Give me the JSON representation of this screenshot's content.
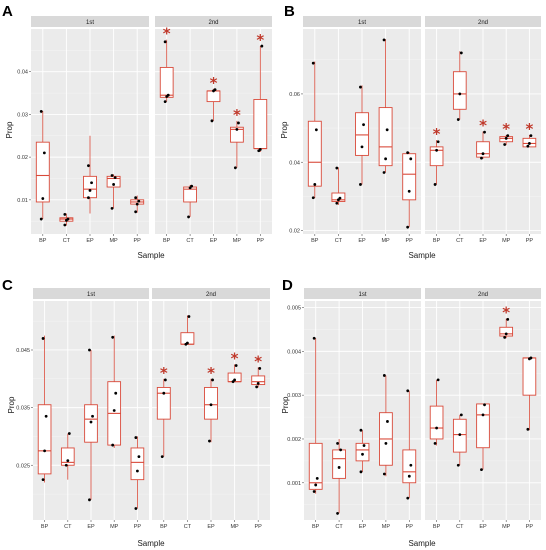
{
  "chart_data": [
    {
      "type": "box",
      "panel_label": "A",
      "xlabel": "Sample",
      "ylabel": "Prop",
      "ylim": [
        0.002,
        0.05
      ],
      "yticks": [
        0.01,
        0.02,
        0.03,
        0.04
      ],
      "ytick_labels": [
        "0.01",
        "0.02",
        "0.03",
        "0.04"
      ],
      "facets": [
        {
          "label": "1st",
          "categories": [
            "BP",
            "CT",
            "EP",
            "MP",
            "PP"
          ],
          "boxes": [
            {
              "min": 0.0055,
              "q1": 0.0095,
              "median": 0.0157,
              "q3": 0.0235,
              "max": 0.0308,
              "points": [
                0.0055,
                0.0103,
                0.021,
                0.0307
              ],
              "star": false
            },
            {
              "min": 0.004,
              "q1": 0.005,
              "median": 0.0055,
              "q3": 0.0058,
              "max": 0.0068,
              "points": [
                0.0041,
                0.0052,
                0.0055,
                0.0066
              ],
              "star": false
            },
            {
              "min": 0.0068,
              "q1": 0.0105,
              "median": 0.0125,
              "q3": 0.0155,
              "max": 0.025,
              "points": [
                0.0105,
                0.0122,
                0.014,
                0.018
              ],
              "star": false
            },
            {
              "min": 0.008,
              "q1": 0.013,
              "median": 0.015,
              "q3": 0.0155,
              "max": 0.016,
              "points": [
                0.008,
                0.0136,
                0.0152,
                0.0157
              ],
              "star": false
            },
            {
              "min": 0.007,
              "q1": 0.009,
              "median": 0.0095,
              "q3": 0.01,
              "max": 0.011,
              "points": [
                0.0072,
                0.009,
                0.0097,
                0.0105
              ],
              "star": false
            }
          ]
        },
        {
          "label": "2nd",
          "categories": [
            "BP",
            "CT",
            "EP",
            "MP",
            "PP"
          ],
          "boxes": [
            {
              "min": 0.033,
              "q1": 0.034,
              "median": 0.0345,
              "q3": 0.041,
              "max": 0.0475,
              "points": [
                0.033,
                0.0342,
                0.0345,
                0.047
              ],
              "star": true
            },
            {
              "min": 0.006,
              "q1": 0.0095,
              "median": 0.0125,
              "q3": 0.013,
              "max": 0.0135,
              "points": [
                0.006,
                0.0128,
                0.0132
              ],
              "star": false
            },
            {
              "min": 0.0285,
              "q1": 0.033,
              "median": 0.0355,
              "q3": 0.0355,
              "max": 0.036,
              "points": [
                0.0285,
                0.0355,
                0.0358
              ],
              "star": true
            },
            {
              "min": 0.0175,
              "q1": 0.0235,
              "median": 0.0265,
              "q3": 0.027,
              "max": 0.0285,
              "points": [
                0.0175,
                0.0265,
                0.028
              ],
              "star": true
            },
            {
              "min": 0.0212,
              "q1": 0.022,
              "median": 0.022,
              "q3": 0.0335,
              "max": 0.046,
              "points": [
                0.0215,
                0.0218,
                0.046
              ],
              "star": true
            }
          ]
        }
      ]
    },
    {
      "type": "box",
      "panel_label": "B",
      "xlabel": "Sample",
      "ylabel": "Prop",
      "ylim": [
        0.019,
        0.079
      ],
      "yticks": [
        0.02,
        0.04,
        0.06
      ],
      "ytick_labels": [
        "0.02",
        "0.04",
        "0.06"
      ],
      "facets": [
        {
          "label": "1st",
          "categories": [
            "BP",
            "CT",
            "EP",
            "MP",
            "PP"
          ],
          "boxes": [
            {
              "min": 0.0295,
              "q1": 0.033,
              "median": 0.04,
              "q3": 0.052,
              "max": 0.0695,
              "points": [
                0.0296,
                0.0335,
                0.0495,
                0.069
              ],
              "star": false
            },
            {
              "min": 0.0275,
              "q1": 0.0285,
              "median": 0.029,
              "q3": 0.031,
              "max": 0.0385,
              "points": [
                0.028,
                0.029,
                0.0295,
                0.0383
              ],
              "star": false
            },
            {
              "min": 0.0335,
              "q1": 0.042,
              "median": 0.048,
              "q3": 0.0545,
              "max": 0.0625,
              "points": [
                0.0335,
                0.0445,
                0.051,
                0.062
              ],
              "star": false
            },
            {
              "min": 0.037,
              "q1": 0.039,
              "median": 0.0445,
              "q3": 0.056,
              "max": 0.076,
              "points": [
                0.037,
                0.041,
                0.0495,
                0.0758
              ],
              "star": false
            },
            {
              "min": 0.021,
              "q1": 0.029,
              "median": 0.0365,
              "q3": 0.0425,
              "max": 0.043,
              "points": [
                0.021,
                0.0315,
                0.041,
                0.0428
              ],
              "star": false
            }
          ]
        },
        {
          "label": "2nd",
          "categories": [
            "BP",
            "CT",
            "EP",
            "MP",
            "PP"
          ],
          "boxes": [
            {
              "min": 0.0335,
              "q1": 0.039,
              "median": 0.0435,
              "q3": 0.0445,
              "max": 0.0465,
              "points": [
                0.0335,
                0.0435,
                0.046
              ],
              "star": true
            },
            {
              "min": 0.0525,
              "q1": 0.0555,
              "median": 0.06,
              "q3": 0.0665,
              "max": 0.0725,
              "points": [
                0.0525,
                0.06,
                0.072
              ],
              "star": false
            },
            {
              "min": 0.041,
              "q1": 0.0415,
              "median": 0.0425,
              "q3": 0.046,
              "max": 0.049,
              "points": [
                0.0412,
                0.0425,
                0.0488
              ],
              "star": true
            },
            {
              "min": 0.045,
              "q1": 0.046,
              "median": 0.047,
              "q3": 0.0475,
              "max": 0.048,
              "points": [
                0.0452,
                0.047,
                0.0478
              ],
              "star": true
            },
            {
              "min": 0.0445,
              "q1": 0.0445,
              "median": 0.0455,
              "q3": 0.047,
              "max": 0.048,
              "points": [
                0.0447,
                0.0455,
                0.0478
              ],
              "star": true
            }
          ]
        }
      ]
    },
    {
      "type": "box",
      "panel_label": "C",
      "xlabel": "Sample",
      "ylabel": "Prop",
      "ylim": [
        0.0155,
        0.0535
      ],
      "yticks": [
        0.025,
        0.035,
        0.045
      ],
      "ytick_labels": [
        "0.025",
        "0.035",
        "0.045"
      ],
      "facets": [
        {
          "label": "1st",
          "categories": [
            "BP",
            "CT",
            "EP",
            "MP",
            "PP"
          ],
          "boxes": [
            {
              "min": 0.022,
              "q1": 0.0235,
              "median": 0.0275,
              "q3": 0.0355,
              "max": 0.0475,
              "points": [
                0.0225,
                0.0275,
                0.0335,
                0.047
              ],
              "star": false
            },
            {
              "min": 0.0225,
              "q1": 0.025,
              "median": 0.0255,
              "q3": 0.028,
              "max": 0.0305,
              "points": [
                0.025,
                0.0258,
                0.0305
              ],
              "star": false
            },
            {
              "min": 0.019,
              "q1": 0.029,
              "median": 0.033,
              "q3": 0.0355,
              "max": 0.045,
              "points": [
                0.019,
                0.0325,
                0.0335,
                0.045
              ],
              "star": false
            },
            {
              "min": 0.028,
              "q1": 0.0285,
              "median": 0.034,
              "q3": 0.0395,
              "max": 0.0475,
              "points": [
                0.0285,
                0.0345,
                0.0375,
                0.0472
              ],
              "star": false
            },
            {
              "min": 0.0175,
              "q1": 0.0225,
              "median": 0.0255,
              "q3": 0.028,
              "max": 0.03,
              "points": [
                0.0175,
                0.024,
                0.0265,
                0.0298
              ],
              "star": false
            }
          ]
        },
        {
          "label": "2nd",
          "categories": [
            "BP",
            "CT",
            "EP",
            "MP",
            "PP"
          ],
          "boxes": [
            {
              "min": 0.0265,
              "q1": 0.033,
              "median": 0.0375,
              "q3": 0.0385,
              "max": 0.04,
              "points": [
                0.0265,
                0.0375,
                0.0398
              ],
              "star": true
            },
            {
              "min": 0.046,
              "q1": 0.046,
              "median": 0.046,
              "q3": 0.048,
              "max": 0.051,
              "points": [
                0.046,
                0.0462,
                0.0508
              ],
              "star": false
            },
            {
              "min": 0.029,
              "q1": 0.033,
              "median": 0.0355,
              "q3": 0.0385,
              "max": 0.04,
              "points": [
                0.0292,
                0.0355,
                0.0398
              ],
              "star": true
            },
            {
              "min": 0.0395,
              "q1": 0.0395,
              "median": 0.0395,
              "q3": 0.041,
              "max": 0.0425,
              "points": [
                0.0395,
                0.0398,
                0.0423
              ],
              "star": true
            },
            {
              "min": 0.0385,
              "q1": 0.039,
              "median": 0.0395,
              "q3": 0.0405,
              "max": 0.042,
              "points": [
                0.0386,
                0.0392,
                0.0418
              ],
              "star": true
            }
          ]
        }
      ]
    },
    {
      "type": "box",
      "panel_label": "D",
      "xlabel": "Sample",
      "ylabel": "Prop",
      "ylim": [
        0.00015,
        0.00515
      ],
      "yticks": [
        0.001,
        0.002,
        0.003,
        0.004,
        0.005
      ],
      "ytick_labels": [
        "0.001",
        "0.002",
        "0.003",
        "0.004",
        "0.005"
      ],
      "facets": [
        {
          "label": "1st",
          "categories": [
            "BP",
            "CT",
            "EP",
            "MP",
            "PP"
          ],
          "boxes": [
            {
              "min": 0.00075,
              "q1": 0.00085,
              "median": 0.001,
              "q3": 0.0019,
              "max": 0.0043,
              "points": [
                0.0008,
                0.00095,
                0.0011,
                0.0043
              ],
              "star": false
            },
            {
              "min": 0.0003,
              "q1": 0.0011,
              "median": 0.00155,
              "q3": 0.00175,
              "max": 0.002,
              "points": [
                0.0003,
                0.00135,
                0.00175,
                0.0019
              ],
              "star": false
            },
            {
              "min": 0.00125,
              "q1": 0.0015,
              "median": 0.00175,
              "q3": 0.0019,
              "max": 0.0022,
              "points": [
                0.00125,
                0.00165,
                0.00185,
                0.0022
              ],
              "star": false
            },
            {
              "min": 0.00115,
              "q1": 0.0014,
              "median": 0.002,
              "q3": 0.0026,
              "max": 0.00345,
              "points": [
                0.0012,
                0.0019,
                0.0024,
                0.00345
              ],
              "star": false
            },
            {
              "min": 0.00065,
              "q1": 0.001,
              "median": 0.00125,
              "q3": 0.00175,
              "max": 0.0031,
              "points": [
                0.00065,
                0.00115,
                0.0014,
                0.0031
              ],
              "star": false
            }
          ]
        },
        {
          "label": "2nd",
          "categories": [
            "BP",
            "CT",
            "EP",
            "MP",
            "PP"
          ],
          "boxes": [
            {
              "min": 0.00185,
              "q1": 0.002,
              "median": 0.00225,
              "q3": 0.00275,
              "max": 0.00335,
              "points": [
                0.0019,
                0.00225,
                0.00335
              ],
              "star": false
            },
            {
              "min": 0.0014,
              "q1": 0.0017,
              "median": 0.0021,
              "q3": 0.00245,
              "max": 0.00255,
              "points": [
                0.0014,
                0.0021,
                0.00255
              ],
              "star": false
            },
            {
              "min": 0.0013,
              "q1": 0.0018,
              "median": 0.00255,
              "q3": 0.0028,
              "max": 0.0028,
              "points": [
                0.0013,
                0.00255,
                0.00278
              ],
              "star": false
            },
            {
              "min": 0.0043,
              "q1": 0.00435,
              "median": 0.0044,
              "q3": 0.00455,
              "max": 0.00475,
              "points": [
                0.00432,
                0.0044,
                0.00473
              ],
              "star": true
            },
            {
              "min": 0.0022,
              "q1": 0.003,
              "median": 0.00385,
              "q3": 0.00385,
              "max": 0.00385,
              "points": [
                0.00222,
                0.00383,
                0.00385
              ],
              "star": false
            }
          ]
        }
      ]
    }
  ]
}
